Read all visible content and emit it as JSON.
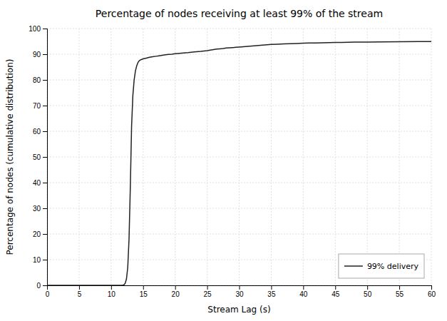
{
  "chart_data": {
    "type": "line",
    "title": "Percentage of nodes receiving at least 99% of the stream",
    "xlabel": "Stream Lag (s)",
    "ylabel": "Percentage of nodes (cumulative distribution)",
    "x": [
      0,
      11.8,
      12.0,
      12.2,
      12.4,
      12.6,
      12.8,
      13.0,
      13.2,
      13.4,
      13.6,
      13.8,
      14.0,
      14.2,
      14.4,
      14.6,
      14.8,
      15.0,
      15.5,
      16.0,
      16.5,
      17.0,
      17.5,
      18.0,
      18.5,
      19.0,
      19.5,
      20.0,
      20.5,
      21.0,
      22.0,
      23.0,
      24.0,
      25.0,
      25.5,
      26.0,
      26.5,
      27.0,
      27.5,
      28.0,
      28.5,
      29.0,
      29.5,
      30.0,
      31.0,
      32.0,
      33.0,
      34.0,
      35.0,
      36.0,
      37.0,
      38.0,
      39.0,
      40.0,
      41.0,
      42.0,
      43.0,
      44.0,
      45.0,
      46.0,
      47.0,
      48.0,
      50.0,
      52.0,
      55.0,
      58.0,
      60.0
    ],
    "series": [
      {
        "name": "99% delivery",
        "color": "#222222",
        "values": [
          0,
          0,
          0.2,
          0.8,
          2.5,
          7.0,
          18.0,
          38.0,
          62.0,
          74.0,
          80.0,
          83.5,
          85.5,
          86.8,
          87.5,
          87.8,
          88.0,
          88.2,
          88.5,
          88.8,
          89.0,
          89.2,
          89.4,
          89.6,
          89.8,
          89.9,
          90.0,
          90.2,
          90.3,
          90.4,
          90.6,
          90.9,
          91.1,
          91.4,
          91.6,
          91.8,
          92.0,
          92.1,
          92.2,
          92.4,
          92.5,
          92.6,
          92.7,
          92.8,
          93.0,
          93.2,
          93.4,
          93.6,
          93.8,
          93.9,
          94.0,
          94.1,
          94.2,
          94.3,
          94.35,
          94.4,
          94.45,
          94.5,
          94.55,
          94.6,
          94.65,
          94.7,
          94.75,
          94.8,
          94.85,
          94.9,
          94.95
        ]
      }
    ],
    "xlim": [
      0,
      60
    ],
    "ylim": [
      0,
      100
    ],
    "xticks": [
      0,
      5,
      10,
      15,
      20,
      25,
      30,
      35,
      40,
      45,
      50,
      55,
      60
    ],
    "yticks": [
      0,
      10,
      20,
      30,
      40,
      50,
      60,
      70,
      80,
      90,
      100
    ],
    "grid": true,
    "legend": "lower right"
  }
}
